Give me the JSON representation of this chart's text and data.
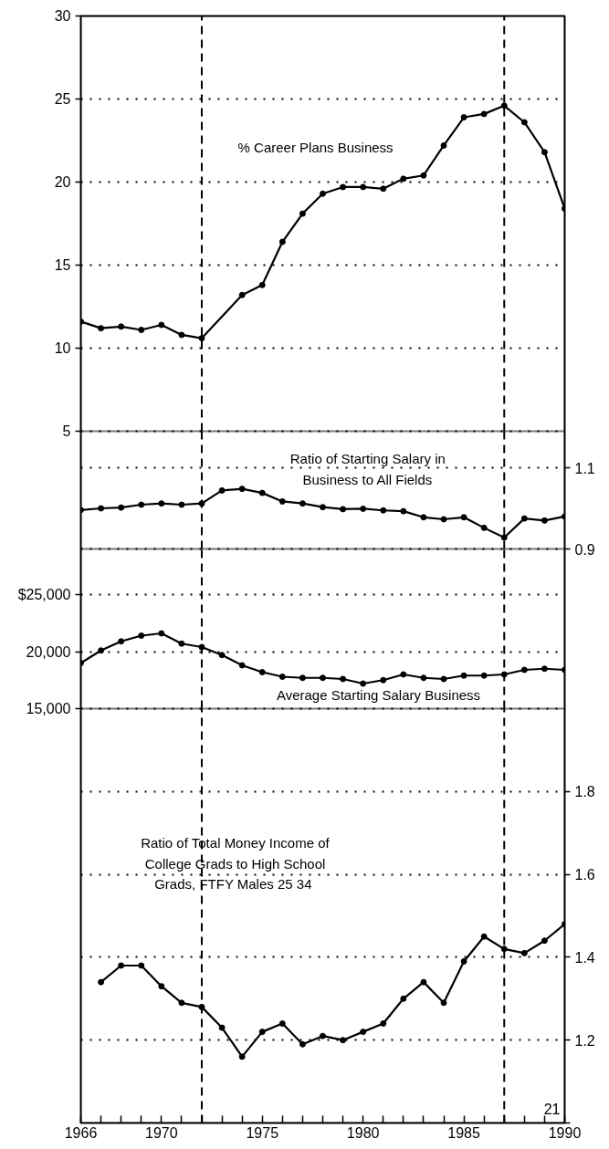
{
  "chart_data": [
    {
      "type": "line",
      "title": "% Career Plans  Business",
      "x": [
        1966,
        1967,
        1968,
        1969,
        1970,
        1971,
        1972,
        1974,
        1975,
        1976,
        1977,
        1978,
        1979,
        1980,
        1981,
        1982,
        1983,
        1984,
        1985,
        1986,
        1987,
        1988,
        1989,
        1990
      ],
      "series": [
        {
          "color": "#000000",
          "values": [
            11.6,
            11.2,
            11.3,
            11.1,
            11.4,
            10.8,
            10.6,
            13.2,
            13.8,
            16.4,
            18.1,
            19.3,
            19.7,
            19.7,
            19.6,
            20.2,
            20.4,
            22.2,
            23.9,
            24.1,
            24.6,
            23.6,
            21.8,
            18.4
          ]
        }
      ],
      "xlim": [
        1966,
        1990
      ],
      "ylim": [
        5,
        30
      ],
      "yticks": [
        5,
        10,
        15,
        20,
        25,
        30
      ],
      "grid": "y",
      "marker": "circle",
      "tick_labels": "y",
      "ref_lines": [
        {
          "axis": "x",
          "value": 1972,
          "line_style": "dashed",
          "color": "#000000"
        },
        {
          "axis": "x",
          "value": 1987,
          "line_style": "dashed",
          "color": "#000000"
        }
      ]
    },
    {
      "type": "line",
      "title": "Ratio of Starting Salary in\nBusiness to All Fields",
      "x": [
        1966,
        1967,
        1968,
        1969,
        1970,
        1971,
        1972,
        1973,
        1974,
        1975,
        1976,
        1977,
        1978,
        1979,
        1980,
        1981,
        1982,
        1983,
        1984,
        1985,
        1986,
        1987,
        1988,
        1989,
        1990
      ],
      "series": [
        {
          "color": "#000000",
          "values": [
            0.996,
            1.0,
            1.002,
            1.009,
            1.012,
            1.009,
            1.012,
            1.044,
            1.048,
            1.038,
            1.017,
            1.012,
            1.003,
            0.998,
            0.999,
            0.995,
            0.993,
            0.978,
            0.973,
            0.978,
            0.952,
            0.928,
            0.975,
            0.97,
            0.98
          ]
        }
      ],
      "xlim": [
        1966,
        1990
      ],
      "ylim": [
        0.9,
        1.19
      ],
      "yticks": [
        0.9,
        1.1
      ],
      "grid": "y",
      "marker": "circle",
      "tick_labels": "y",
      "ref_lines": [
        {
          "axis": "x",
          "value": 1972,
          "line_style": "dashed",
          "color": "#000000"
        },
        {
          "axis": "x",
          "value": 1987,
          "line_style": "dashed",
          "color": "#000000"
        }
      ]
    },
    {
      "type": "line",
      "title": "Average Starting Salary  Business",
      "x": [
        1966,
        1967,
        1968,
        1969,
        1970,
        1971,
        1972,
        1973,
        1974,
        1975,
        1976,
        1977,
        1978,
        1979,
        1980,
        1981,
        1982,
        1983,
        1984,
        1985,
        1986,
        1987,
        1988,
        1989,
        1990
      ],
      "series": [
        {
          "color": "#000000",
          "values": [
            19000,
            20100,
            20900,
            21400,
            21600,
            20700,
            20400,
            19700,
            18800,
            18200,
            17800,
            17700,
            17700,
            17600,
            17200,
            17500,
            18000,
            17700,
            17600,
            17900,
            17900,
            18000,
            18400,
            18500,
            18400
          ]
        }
      ],
      "xlim": [
        1966,
        1990
      ],
      "ylim": [
        15000,
        29000
      ],
      "yticks": [
        {
          "value": 15000,
          "label": "15,000"
        },
        {
          "value": 20000,
          "label": "20,000"
        },
        {
          "value": 25000,
          "label": "$25,000"
        }
      ],
      "grid": "y",
      "marker": "circle",
      "tick_labels": "y",
      "ref_lines": [
        {
          "axis": "x",
          "value": 1972,
          "line_style": "dashed",
          "color": "#000000"
        },
        {
          "axis": "x",
          "value": 1987,
          "line_style": "dashed",
          "color": "#000000"
        }
      ]
    },
    {
      "type": "line",
      "title": "Ratio of Total Money Income of\nCollege Grads to High School\nGrads, FTFY Males 25  34",
      "x": [
        1967,
        1968,
        1969,
        1970,
        1971,
        1972,
        1973,
        1974,
        1975,
        1976,
        1977,
        1978,
        1979,
        1980,
        1981,
        1982,
        1983,
        1984,
        1985,
        1986,
        1987,
        1988,
        1989,
        1990
      ],
      "series": [
        {
          "color": "#000000",
          "values": [
            1.34,
            1.38,
            1.38,
            1.33,
            1.29,
            1.28,
            1.23,
            1.16,
            1.22,
            1.24,
            1.19,
            1.21,
            1.2,
            1.22,
            1.24,
            1.3,
            1.34,
            1.29,
            1.39,
            1.45,
            1.42,
            1.41,
            1.44,
            1.48
          ]
        }
      ],
      "xlim": [
        1966,
        1990
      ],
      "ylim": [
        1.0,
        2.0
      ],
      "yticks": [
        {
          "value": 1.0,
          "label": null
        },
        1.2,
        1.4,
        1.6,
        1.8
      ],
      "xticks": [
        1966,
        {
          "value": 1967,
          "label": null
        },
        {
          "value": 1968,
          "label": null
        },
        {
          "value": 1969,
          "label": null
        },
        1970,
        {
          "value": 1971,
          "label": null
        },
        {
          "value": 1972,
          "label": null
        },
        {
          "value": 1973,
          "label": null
        },
        {
          "value": 1974,
          "label": null
        },
        1975,
        {
          "value": 1976,
          "label": null
        },
        {
          "value": 1977,
          "label": null
        },
        {
          "value": 1978,
          "label": null
        },
        {
          "value": 1979,
          "label": null
        },
        1980,
        {
          "value": 1981,
          "label": null
        },
        {
          "value": 1982,
          "label": null
        },
        {
          "value": 1983,
          "label": null
        },
        {
          "value": 1984,
          "label": null
        },
        1985,
        {
          "value": 1986,
          "label": null
        },
        {
          "value": 1987,
          "label": null
        },
        {
          "value": 1988,
          "label": null
        },
        {
          "value": 1989,
          "label": null
        },
        1990
      ],
      "grid": "y",
      "marker": "circle",
      "annotations": [
        "21"
      ],
      "ref_lines": [
        {
          "axis": "x",
          "value": 1972,
          "line_style": "dashed",
          "color": "#000000"
        },
        {
          "axis": "x",
          "value": 1987,
          "line_style": "dashed",
          "color": "#000000"
        }
      ]
    }
  ]
}
